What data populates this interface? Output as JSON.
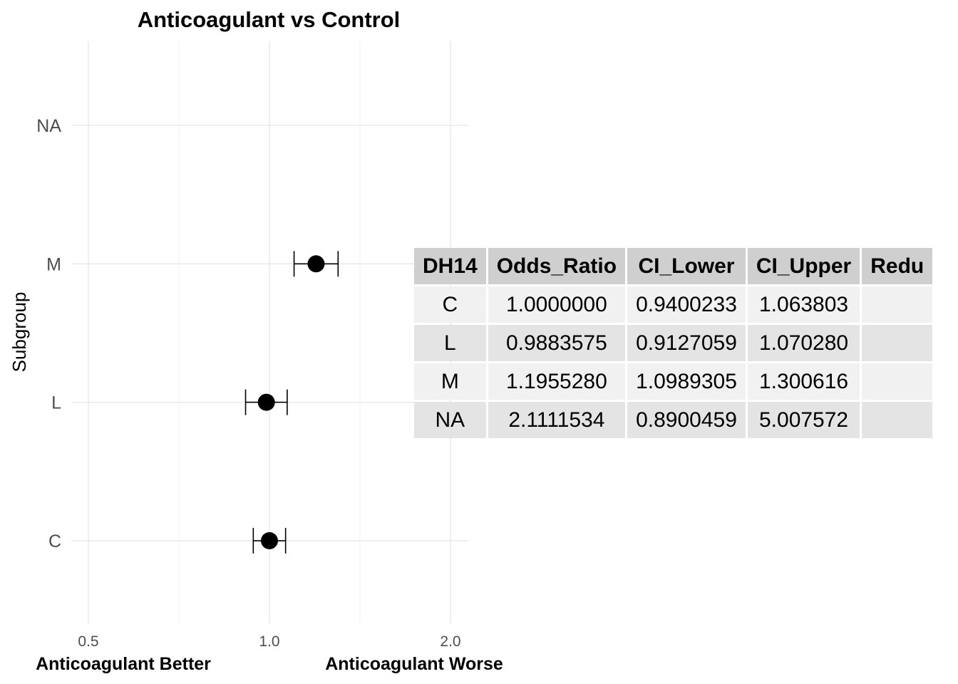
{
  "chart_data": {
    "type": "forest",
    "title": "Anticoagulant vs Control",
    "ylabel": "Subgroup",
    "x_scale": "log",
    "xlim": [
      0.5,
      2.0
    ],
    "x_ticks": [
      "0.5",
      "1.0",
      "2.0"
    ],
    "x_tick_values": [
      0.5,
      1.0,
      2.0
    ],
    "categories": [
      "NA",
      "M",
      "L",
      "C"
    ],
    "points": [
      {
        "label": "NA",
        "or": null,
        "lower": null,
        "upper": null
      },
      {
        "label": "M",
        "or": 1.195528,
        "lower": 1.0989305,
        "upper": 1.300616
      },
      {
        "label": "L",
        "or": 0.9883575,
        "lower": 0.9127059,
        "upper": 1.07028
      },
      {
        "label": "C",
        "or": 1.0,
        "lower": 0.9400233,
        "upper": 1.063803
      }
    ],
    "annotations": {
      "left": "Anticoagulant Better",
      "right": "Anticoagulant Worse"
    },
    "grid": true
  },
  "table": {
    "headers": [
      "DH14",
      "Odds_Ratio",
      "CI_Lower",
      "CI_Upper",
      "Redu"
    ],
    "rows": [
      [
        "C",
        "1.0000000",
        "0.9400233",
        "1.063803",
        ""
      ],
      [
        "L",
        "0.9883575",
        "0.9127059",
        "1.070280",
        ""
      ],
      [
        "M",
        "1.1955280",
        "1.0989305",
        "1.300616",
        ""
      ],
      [
        "NA",
        "2.1111534",
        "0.8900459",
        "5.007572",
        ""
      ]
    ]
  }
}
